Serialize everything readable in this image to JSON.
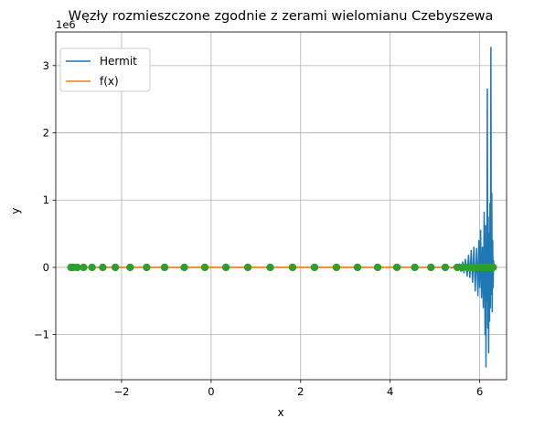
{
  "chart_data": {
    "type": "line",
    "title": "Węzły rozmieszczone zgodnie z zerami wielomianu Czebyszewa",
    "xlabel": "x",
    "ylabel": "y",
    "offset_text": "1e6",
    "xlim": [
      -3.47,
      6.6
    ],
    "ylim": [
      -1.67,
      3.5
    ],
    "xticks": [
      -2,
      0,
      2,
      4,
      6
    ],
    "xtick_labels": [
      "−2",
      "0",
      "2",
      "4",
      "6"
    ],
    "yticks": [
      -1,
      0,
      1,
      2,
      3
    ],
    "ytick_labels": [
      "−1",
      "0",
      "1",
      "2",
      "3"
    ],
    "grid": true,
    "legend_position": "upper-left",
    "series": [
      {
        "name": "Hermit",
        "color": "#1f77b4",
        "x": [
          -3.1416,
          5.2,
          5.3,
          5.38,
          5.45,
          5.5,
          5.55,
          5.58,
          5.62,
          5.65,
          5.68,
          5.72,
          5.75,
          5.78,
          5.81,
          5.84,
          5.87,
          5.9,
          5.93,
          5.96,
          5.98,
          6.0,
          6.02,
          6.04,
          6.06,
          6.08,
          6.1,
          6.12,
          6.13,
          6.14,
          6.15,
          6.16,
          6.17,
          6.18,
          6.19,
          6.2,
          6.21,
          6.22,
          6.23,
          6.24,
          6.25,
          6.26,
          6.27,
          6.28,
          6.29,
          6.3,
          6.31,
          6.32
        ],
        "y": [
          0,
          0,
          0.01,
          -0.01,
          0.03,
          -0.03,
          0.05,
          -0.06,
          0.08,
          -0.08,
          0.12,
          -0.13,
          0.18,
          -0.15,
          0.25,
          -0.22,
          0.3,
          -0.35,
          0.28,
          -0.42,
          0.4,
          -0.3,
          0.55,
          -0.45,
          0.3,
          -0.6,
          0.82,
          -1.0,
          0.62,
          -1.48,
          0.4,
          -0.5,
          2.65,
          -0.9,
          0.75,
          -1.27,
          0.5,
          -0.8,
          0.95,
          -0.6,
          3.27,
          -0.4,
          1.1,
          -0.66,
          0.4,
          -0.3,
          0.1,
          0
        ]
      },
      {
        "name": "f(x)",
        "color": "#ff7f0e",
        "x": [
          -3.1416,
          6.2832
        ],
        "y": [
          0,
          0
        ]
      }
    ],
    "nodes": {
      "color": "#2ca02c",
      "x": [
        -3.13,
        -3.08,
        -2.99,
        -2.85,
        -2.66,
        -2.42,
        -2.14,
        -1.81,
        -1.44,
        -1.04,
        -0.6,
        -0.14,
        0.33,
        0.82,
        1.32,
        1.82,
        2.31,
        2.8,
        3.27,
        3.72,
        4.15,
        4.55,
        4.91,
        5.23,
        5.5,
        5.73,
        5.9,
        6.02,
        6.09,
        6.12,
        5.62,
        5.78,
        5.86,
        5.95,
        5.98,
        6.05,
        6.07,
        6.1,
        6.14,
        6.16,
        6.18,
        6.2,
        6.22,
        6.24,
        6.26,
        6.28,
        6.3
      ],
      "y": [
        0,
        0,
        0,
        0,
        0,
        0,
        0,
        0,
        0,
        0,
        0,
        0,
        0,
        0,
        0,
        0,
        0,
        0,
        0,
        0,
        0,
        0,
        0,
        0,
        0,
        0,
        0,
        0,
        0,
        0,
        0,
        0,
        0,
        0,
        0,
        0,
        0,
        0,
        0,
        0,
        0,
        0,
        0,
        0,
        0,
        0,
        0
      ]
    }
  }
}
